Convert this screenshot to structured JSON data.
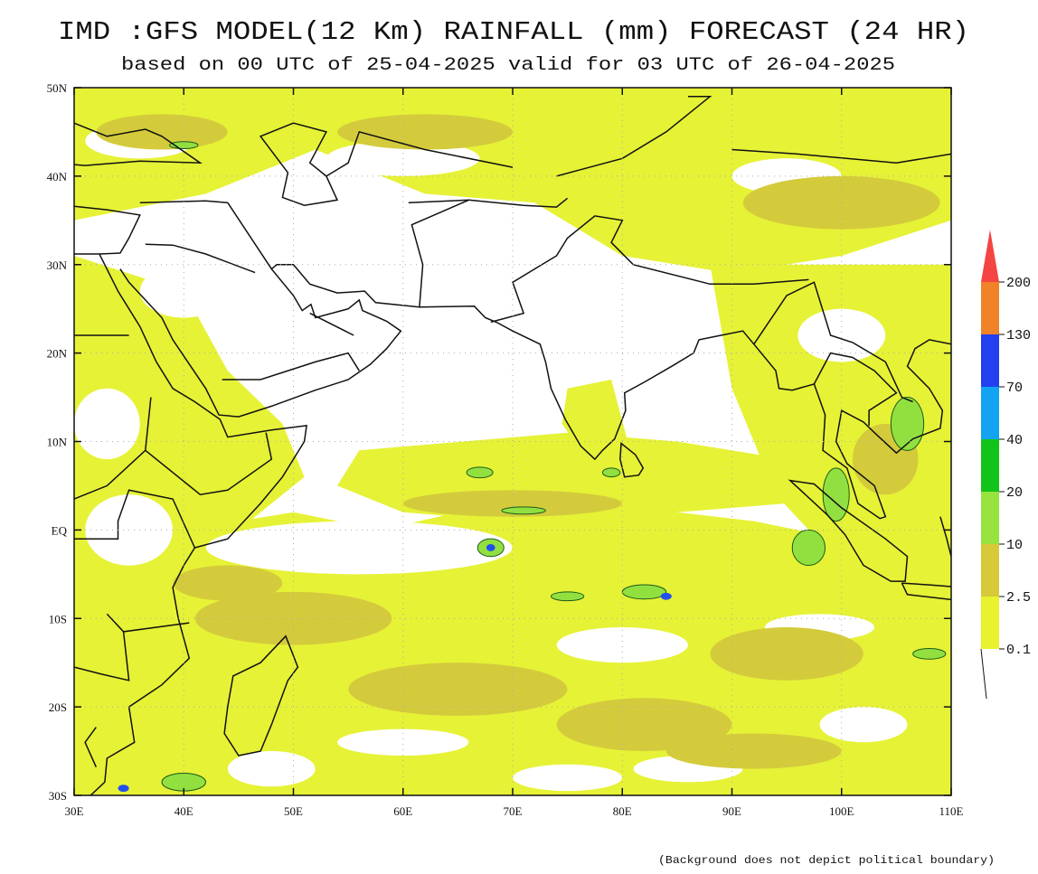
{
  "header": {
    "title": "IMD :GFS MODEL(12 Km) RAINFALL (mm) FORECAST (24 HR)",
    "subtitle": "based on 00 UTC of 25-04-2025 valid for 03 UTC of 26-04-2025"
  },
  "map": {
    "lat_labels": [
      "50N",
      "40N",
      "30N",
      "20N",
      "10N",
      "EQ",
      "10S",
      "20S",
      "30S"
    ],
    "lon_labels": [
      "30E",
      "40E",
      "50E",
      "60E",
      "70E",
      "80E",
      "90E",
      "100E",
      "110E"
    ]
  },
  "legend": {
    "labels": [
      "0.1",
      "2.5",
      "10",
      "20",
      "40",
      "70",
      "130",
      "200"
    ],
    "colors": [
      "#e8f22e",
      "#d6c93a",
      "#98e23e",
      "#12c41a",
      "#12a4f2",
      "#2240ee",
      "#f08228",
      "#f44444"
    ]
  },
  "footnote": "(Background does not depict political boundary)"
}
